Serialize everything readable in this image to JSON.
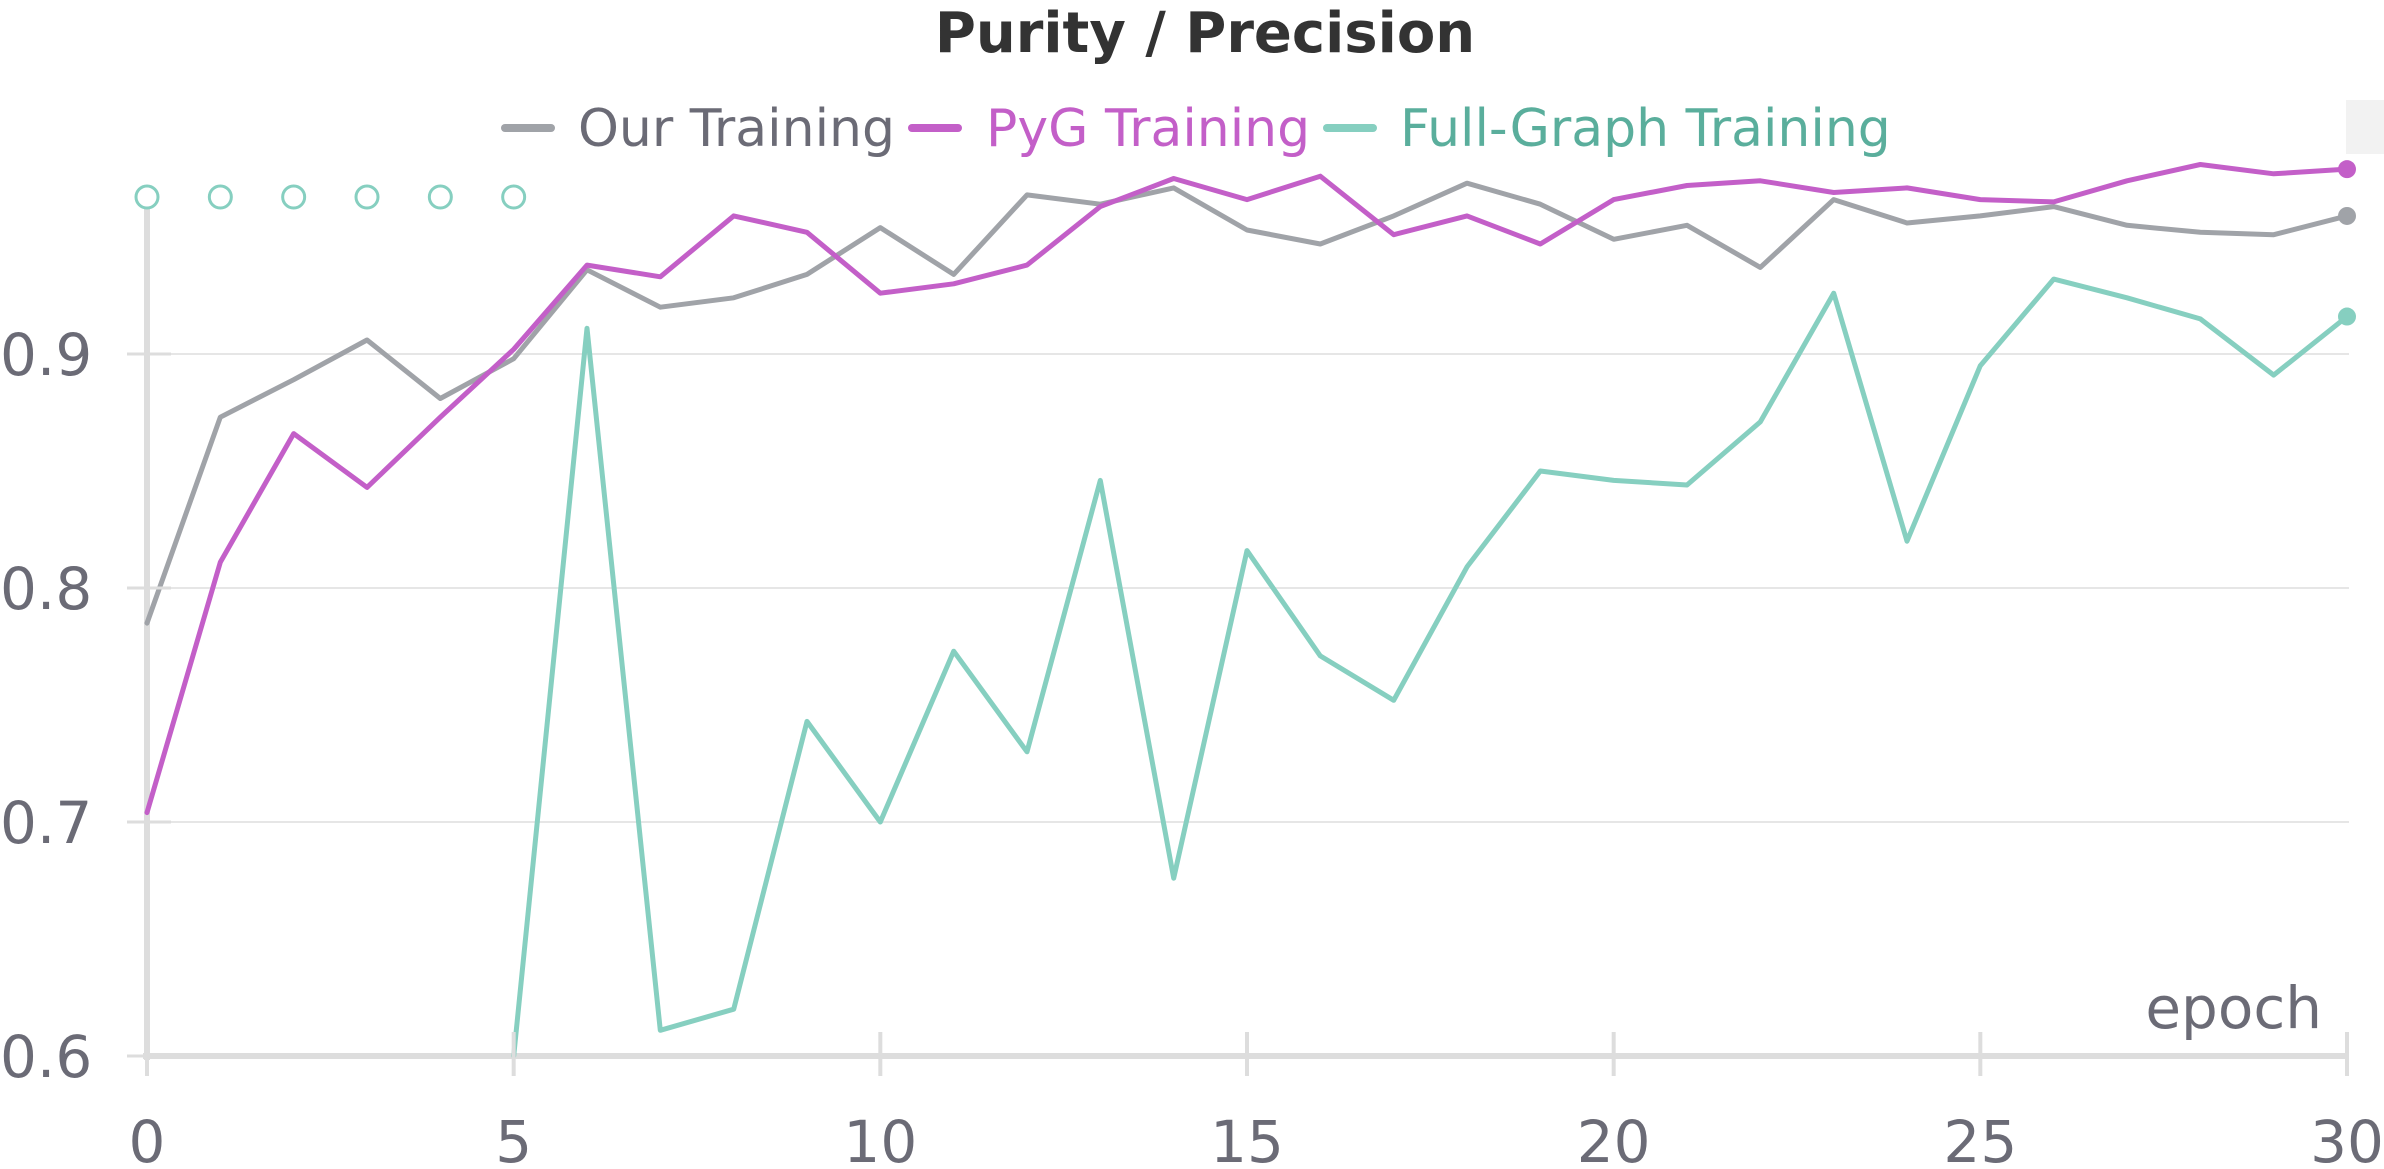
{
  "chart_data": {
    "type": "line",
    "title": "Purity / Precision",
    "xlabel": "epoch",
    "ylabel": "",
    "xlim": [
      0,
      30
    ],
    "ylim": [
      0.6,
      1.0
    ],
    "x_ticks": [
      0,
      5,
      10,
      15,
      20,
      25,
      30
    ],
    "y_ticks": [
      0.6,
      0.7,
      0.8,
      0.9
    ],
    "x_tick_labels": [
      "0",
      "5",
      "10",
      "15",
      "20",
      "25",
      "30"
    ],
    "y_tick_labels": [
      "0.6",
      "0.7",
      "0.8",
      "0.9"
    ],
    "grid": true,
    "legend_position": "top-center",
    "series": [
      {
        "name": "Our Training",
        "color": "#a0a3a8",
        "x": [
          0,
          1,
          2,
          3,
          4,
          5,
          6,
          7,
          8,
          9,
          10,
          11,
          12,
          13,
          14,
          15,
          16,
          17,
          18,
          19,
          20,
          21,
          22,
          23,
          24,
          25,
          26,
          27,
          28,
          29,
          30
        ],
        "values": [
          0.785,
          0.873,
          0.889,
          0.906,
          0.881,
          0.898,
          0.936,
          0.92,
          0.924,
          0.934,
          0.954,
          0.934,
          0.968,
          0.964,
          0.971,
          0.953,
          0.947,
          0.959,
          0.973,
          0.964,
          0.949,
          0.955,
          0.937,
          0.966,
          0.956,
          0.959,
          0.963,
          0.955,
          0.952,
          0.951,
          0.959
        ]
      },
      {
        "name": "PyG Training",
        "color": "#c35fc8",
        "x": [
          0,
          1,
          2,
          3,
          4,
          5,
          6,
          7,
          8,
          9,
          10,
          11,
          12,
          13,
          14,
          15,
          16,
          17,
          18,
          19,
          20,
          21,
          22,
          23,
          24,
          25,
          26,
          27,
          28,
          29,
          30
        ],
        "values": [
          0.704,
          0.811,
          0.866,
          0.843,
          0.873,
          0.902,
          0.938,
          0.933,
          0.959,
          0.952,
          0.926,
          0.93,
          0.938,
          0.963,
          0.975,
          0.966,
          0.976,
          0.951,
          0.959,
          0.947,
          0.966,
          0.972,
          0.974,
          0.969,
          0.971,
          0.966,
          0.965,
          0.974,
          0.981,
          0.977,
          0.979
        ]
      },
      {
        "name": "Full-Graph Training",
        "color": "#86cfc0",
        "legend_text_color": "#5aae9c",
        "x": [
          5,
          6,
          7,
          8,
          9,
          10,
          11,
          12,
          13,
          14,
          15,
          16,
          17,
          18,
          19,
          20,
          21,
          22,
          23,
          24,
          25,
          26,
          27,
          28,
          29,
          30
        ],
        "values": [
          0.6,
          0.911,
          0.611,
          0.62,
          0.743,
          0.7,
          0.773,
          0.73,
          0.846,
          0.676,
          0.816,
          0.771,
          0.752,
          0.809,
          0.85,
          0.846,
          0.844,
          0.871,
          0.926,
          0.82,
          0.895,
          0.932,
          0.924,
          0.915,
          0.891,
          0.916
        ],
        "missing_x": [
          0,
          1,
          2,
          3,
          4,
          5
        ]
      }
    ]
  }
}
